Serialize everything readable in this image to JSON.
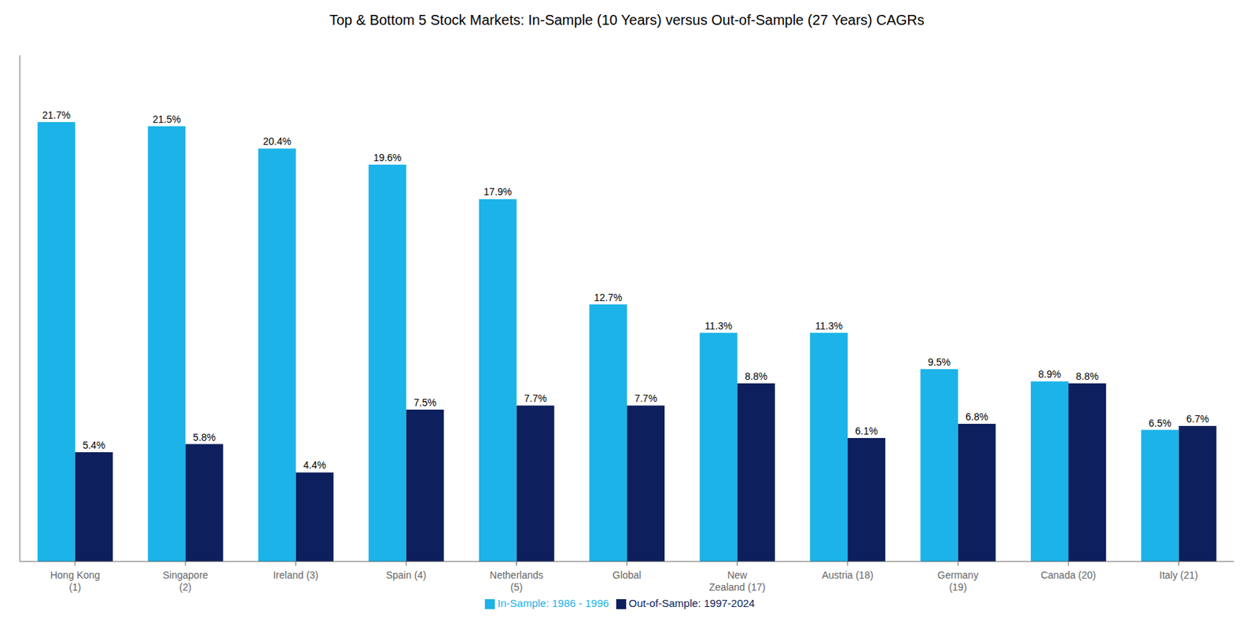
{
  "chart_data": {
    "type": "bar",
    "title": "Top & Bottom 5 Stock Markets: In-Sample (10 Years) versus Out-of-Sample (27 Years) CAGRs",
    "categories": [
      "Hong Kong\n(1)",
      "Singapore\n(2)",
      "Ireland (3)",
      "Spain (4)",
      "Netherlands\n(5)",
      "Global",
      "New\nZealand (17)",
      "Austria (18)",
      "Germany\n(19)",
      "Canada (20)",
      "Italy (21)"
    ],
    "series": [
      {
        "name": "In-Sample: 1986 - 1996",
        "color": "#1BB3E8",
        "values": [
          21.7,
          21.5,
          20.4,
          19.6,
          17.9,
          12.7,
          11.3,
          11.3,
          9.5,
          8.9,
          6.5
        ],
        "value_labels": [
          "21.7%",
          "21.5%",
          "20.4%",
          "19.6%",
          "17.9%",
          "12.7%",
          "11.3%",
          "11.3%",
          "9.5%",
          "8.9%",
          "6.5%"
        ]
      },
      {
        "name": "Out-of-Sample: 1997-2024",
        "color": "#0D1F5C",
        "values": [
          5.4,
          5.8,
          4.4,
          7.5,
          7.7,
          7.7,
          8.8,
          6.1,
          6.8,
          8.8,
          6.7
        ],
        "value_labels": [
          "5.4%",
          "5.8%",
          "4.4%",
          "7.5%",
          "7.7%",
          "7.7%",
          "8.8%",
          "6.1%",
          "6.8%",
          "8.8%",
          "6.7%"
        ]
      }
    ],
    "ylim": [
      0,
      25
    ],
    "data_labels": true,
    "tick_labels": "x",
    "grid": false,
    "legend": "bottom"
  }
}
